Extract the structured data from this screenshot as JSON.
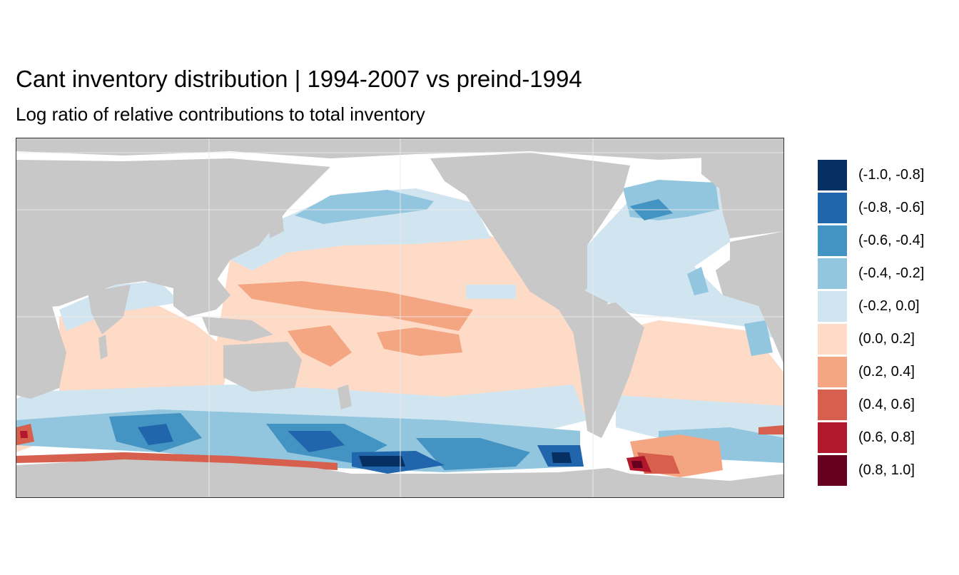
{
  "title": "Cant inventory distribution | 1994-2007 vs preind-1994",
  "subtitle": "Log ratio of relative contributions to total inventory",
  "map": {
    "land_color": "#c8c8c8",
    "gridline_color": "#ececec"
  },
  "legend": {
    "items": [
      {
        "label": "(-1.0, -0.8]",
        "color": "#053061"
      },
      {
        "label": "(-0.8, -0.6]",
        "color": "#2166ac"
      },
      {
        "label": "(-0.6, -0.4]",
        "color": "#4393c3"
      },
      {
        "label": "(-0.4, -0.2]",
        "color": "#92c5de"
      },
      {
        "label": "(-0.2, 0.0]",
        "color": "#d1e5f0"
      },
      {
        "label": "(0.0, 0.2]",
        "color": "#fddbc7"
      },
      {
        "label": "(0.2, 0.4]",
        "color": "#f4a582"
      },
      {
        "label": "(0.4, 0.6]",
        "color": "#d6604d"
      },
      {
        "label": "(0.6, 0.8]",
        "color": "#b2182b"
      },
      {
        "label": "(0.8, 1.0]",
        "color": "#67001f"
      }
    ]
  }
}
